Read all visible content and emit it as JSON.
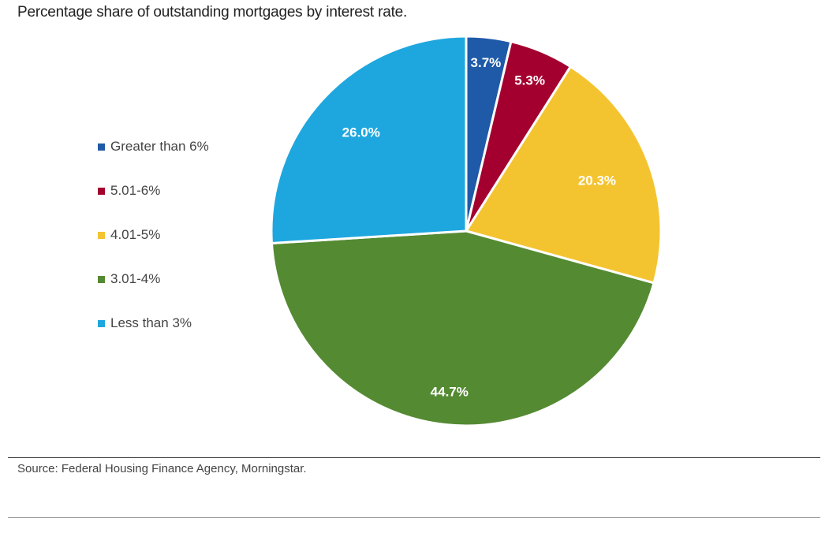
{
  "chart_data": {
    "type": "pie",
    "title": "Percentage share of outstanding mortgages by interest rate.",
    "slices": [
      {
        "label": "Greater than 6%",
        "value": 3.7,
        "value_label": "3.7%",
        "color": "#1f5aa8"
      },
      {
        "label": "5.01-6%",
        "value": 5.3,
        "value_label": "5.3%",
        "color": "#a4002f"
      },
      {
        "label": "4.01-5%",
        "value": 20.3,
        "value_label": "20.3%",
        "color": "#f4c430"
      },
      {
        "label": "3.01-4%",
        "value": 44.7,
        "value_label": "44.7%",
        "color": "#548a32"
      },
      {
        "label": "Less than 3%",
        "value": 26.0,
        "value_label": "26.0%",
        "color": "#1ea7df"
      }
    ],
    "legend_position": "left",
    "source": "Source: Federal Housing Finance Agency, Morningstar."
  }
}
